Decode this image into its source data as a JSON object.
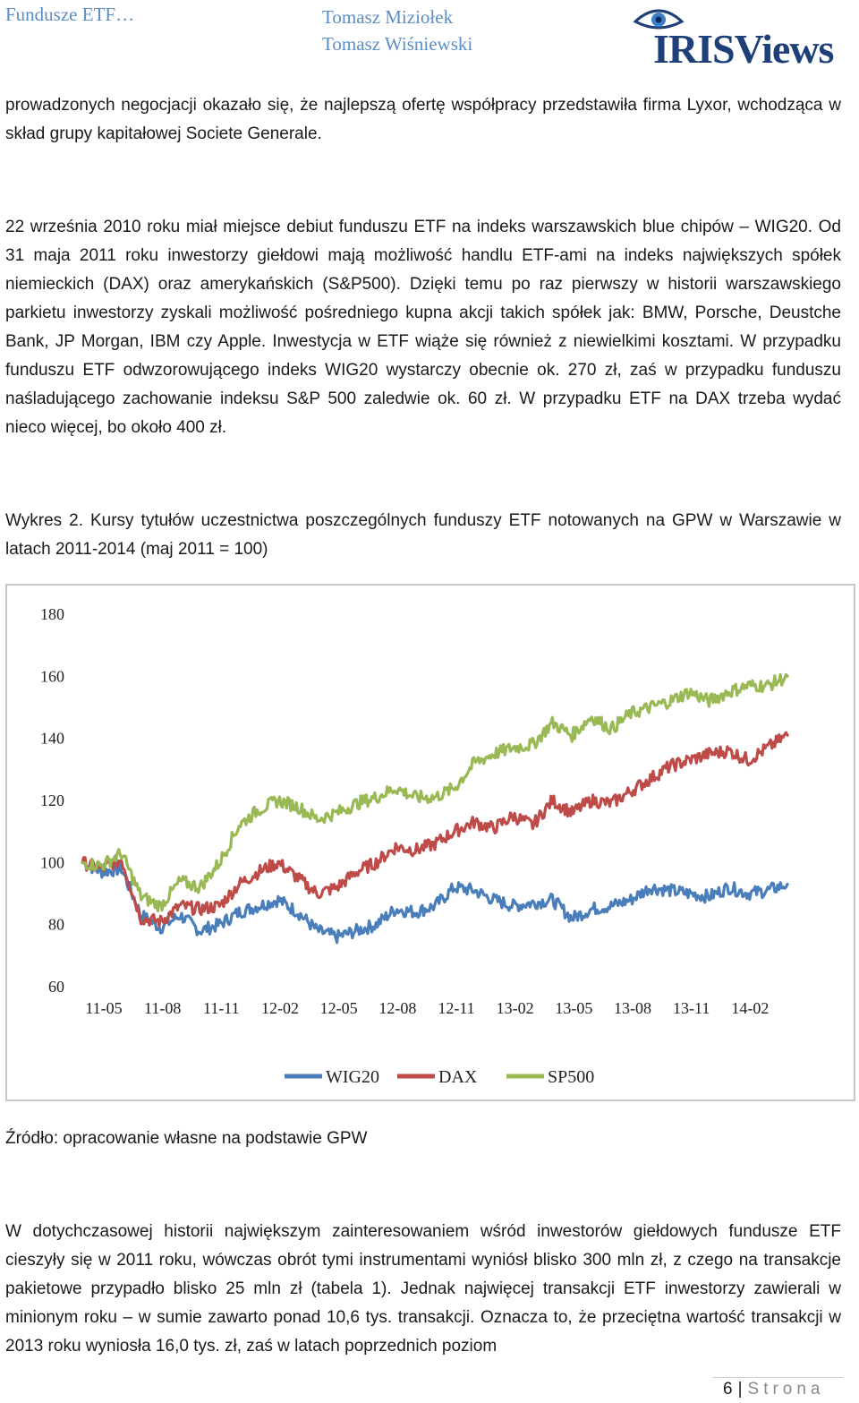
{
  "header": {
    "title": "Fundusze ETF…",
    "author1": "Tomasz Miziołek",
    "author2": "Tomasz Wiśniewski",
    "logo_text": "IRISViews"
  },
  "paragraphs": {
    "p1": "prowadzonych negocjacji okazało się, że najlepszą ofertę współpracy przedstawiła firma Lyxor, wchodząca w skład grupy kapitałowej Societe Generale.",
    "p2": "22 września 2010 roku miał miejsce debiut funduszu ETF na indeks warszawskich blue chipów – WIG20. Od 31 maja 2011 roku inwestorzy giełdowi mają możliwość handlu ETF-ami na indeks największych spółek niemieckich (DAX) oraz amerykańskich (S&P500). Dzięki temu po raz pierwszy w historii warszawskiego parkietu inwestorzy zyskali możliwość pośredniego kupna akcji takich spółek jak: BMW, Porsche, Deustche Bank, JP Morgan, IBM czy Apple. Inwestycja w ETF wiąże się również z niewielkimi kosztami. W przypadku funduszu ETF odwzorowującego indeks WIG20 wystarczy obecnie ok. 270 zł, zaś w przypadku funduszu naśladującego zachowanie indeksu S&P 500 zaledwie ok. 60 zł. W przypadku ETF na DAX trzeba wydać nieco więcej, bo około 400 zł.",
    "caption": "Wykres 2. Kursy tytułów uczestnictwa poszczególnych funduszy ETF notowanych na GPW w Warszawie w latach 2011-2014 (maj 2011 = 100)",
    "source": "Źródło: opracowanie własne na podstawie GPW",
    "p3": "W dotychczasowej historii największym zainteresowaniem wśród inwestorów giełdowych fundusze ETF cieszyły się w 2011 roku, wówczas obrót tymi instrumentami wyniósł blisko 300 mln zł, z czego na transakcje pakietowe przypadło blisko 25 mln zł (tabela 1). Jednak najwięcej transakcji ETF inwestorzy zawierali w minionym roku – w sumie zawarto ponad 10,6 tys. transakcji. Oznacza to, że przeciętna wartość transakcji w 2013 roku wyniosła 16,0 tys. zł, zaś w latach poprzednich poziom"
  },
  "footer": {
    "page": "6",
    "label": "Strona"
  },
  "chart_data": {
    "type": "line",
    "title": "",
    "xlabel": "",
    "ylabel": "",
    "ylim": [
      60,
      180
    ],
    "yticks": [
      "180",
      "160",
      "140",
      "120",
      "100",
      "80",
      "60"
    ],
    "xticks": [
      "11-05",
      "11-08",
      "11-11",
      "12-02",
      "12-05",
      "12-08",
      "12-11",
      "13-02",
      "13-05",
      "13-08",
      "13-11",
      "14-02"
    ],
    "x_range": [
      "2011-05",
      "2014-05"
    ],
    "grid": false,
    "legend": "bottom",
    "series": [
      {
        "name": "WIG20",
        "color": "#4a7ebb",
        "points": [
          [
            "2011-05",
            100
          ],
          [
            "2011-06",
            97
          ],
          [
            "2011-07",
            98
          ],
          [
            "2011-08",
            83
          ],
          [
            "2011-09",
            79
          ],
          [
            "2011-10",
            83
          ],
          [
            "2011-11",
            78
          ],
          [
            "2011-12",
            80
          ],
          [
            "2012-01",
            84
          ],
          [
            "2012-02",
            86
          ],
          [
            "2012-03",
            88
          ],
          [
            "2012-04",
            84
          ],
          [
            "2012-05",
            78
          ],
          [
            "2012-06",
            76
          ],
          [
            "2012-07",
            78
          ],
          [
            "2012-08",
            80
          ],
          [
            "2012-09",
            85
          ],
          [
            "2012-10",
            84
          ],
          [
            "2012-11",
            86
          ],
          [
            "2012-12",
            92
          ],
          [
            "2013-01",
            91
          ],
          [
            "2013-02",
            88
          ],
          [
            "2013-03",
            86
          ],
          [
            "2013-04",
            87
          ],
          [
            "2013-05",
            88
          ],
          [
            "2013-06",
            82
          ],
          [
            "2013-07",
            85
          ],
          [
            "2013-08",
            86
          ],
          [
            "2013-09",
            88
          ],
          [
            "2013-10",
            92
          ],
          [
            "2013-11",
            91
          ],
          [
            "2013-12",
            90
          ],
          [
            "2014-01",
            89
          ],
          [
            "2014-02",
            92
          ],
          [
            "2014-03",
            90
          ],
          [
            "2014-04",
            91
          ],
          [
            "2014-05",
            93
          ]
        ]
      },
      {
        "name": "DAX",
        "color": "#be4b48",
        "points": [
          [
            "2011-05",
            100
          ],
          [
            "2011-06",
            98
          ],
          [
            "2011-07",
            101
          ],
          [
            "2011-08",
            82
          ],
          [
            "2011-09",
            81
          ],
          [
            "2011-10",
            86
          ],
          [
            "2011-11",
            85
          ],
          [
            "2011-12",
            86
          ],
          [
            "2012-01",
            93
          ],
          [
            "2012-02",
            97
          ],
          [
            "2012-03",
            100
          ],
          [
            "2012-04",
            95
          ],
          [
            "2012-05",
            90
          ],
          [
            "2012-06",
            92
          ],
          [
            "2012-07",
            97
          ],
          [
            "2012-08",
            100
          ],
          [
            "2012-09",
            105
          ],
          [
            "2012-10",
            104
          ],
          [
            "2012-11",
            106
          ],
          [
            "2012-12",
            110
          ],
          [
            "2013-01",
            113
          ],
          [
            "2013-02",
            111
          ],
          [
            "2013-03",
            115
          ],
          [
            "2013-04",
            112
          ],
          [
            "2013-05",
            120
          ],
          [
            "2013-06",
            116
          ],
          [
            "2013-07",
            120
          ],
          [
            "2013-08",
            119
          ],
          [
            "2013-09",
            123
          ],
          [
            "2013-10",
            127
          ],
          [
            "2013-11",
            131
          ],
          [
            "2013-12",
            133
          ],
          [
            "2014-01",
            135
          ],
          [
            "2014-02",
            136
          ],
          [
            "2014-03",
            133
          ],
          [
            "2014-04",
            137
          ],
          [
            "2014-05",
            141
          ]
        ]
      },
      {
        "name": "SP500",
        "color": "#98b954",
        "points": [
          [
            "2011-05",
            100
          ],
          [
            "2011-06",
            99
          ],
          [
            "2011-07",
            103
          ],
          [
            "2011-08",
            89
          ],
          [
            "2011-09",
            86
          ],
          [
            "2011-10",
            94
          ],
          [
            "2011-11",
            92
          ],
          [
            "2011-12",
            100
          ],
          [
            "2012-01",
            112
          ],
          [
            "2012-02",
            117
          ],
          [
            "2012-03",
            120
          ],
          [
            "2012-04",
            118
          ],
          [
            "2012-05",
            114
          ],
          [
            "2012-06",
            116
          ],
          [
            "2012-07",
            119
          ],
          [
            "2012-08",
            121
          ],
          [
            "2012-09",
            124
          ],
          [
            "2012-10",
            121
          ],
          [
            "2012-11",
            121
          ],
          [
            "2012-12",
            124
          ],
          [
            "2013-01",
            132
          ],
          [
            "2013-02",
            135
          ],
          [
            "2013-03",
            137
          ],
          [
            "2013-04",
            138
          ],
          [
            "2013-05",
            145
          ],
          [
            "2013-06",
            141
          ],
          [
            "2013-07",
            147
          ],
          [
            "2013-08",
            143
          ],
          [
            "2013-09",
            148
          ],
          [
            "2013-10",
            150
          ],
          [
            "2013-11",
            152
          ],
          [
            "2013-12",
            155
          ],
          [
            "2014-01",
            152
          ],
          [
            "2014-02",
            155
          ],
          [
            "2014-03",
            157
          ],
          [
            "2014-04",
            157
          ],
          [
            "2014-05",
            160
          ]
        ]
      }
    ]
  }
}
